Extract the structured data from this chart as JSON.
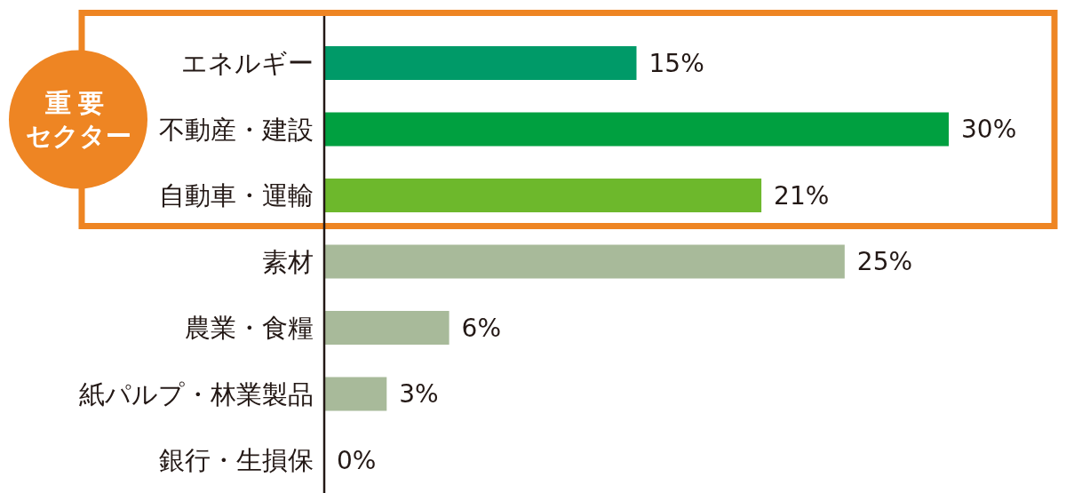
{
  "chart_data": {
    "type": "bar",
    "orientation": "horizontal",
    "categories": [
      "エネルギー",
      "不動産・建設",
      "自動車・運輸",
      "素材",
      "農業・食糧",
      "紙パルプ・林業製品",
      "銀行・生損保"
    ],
    "values": [
      15,
      30,
      21,
      25,
      6,
      3,
      0
    ],
    "colors": [
      "#009a68",
      "#00a040",
      "#6db82c",
      "#a8ba9a",
      "#a8ba9a",
      "#a8ba9a",
      "#a8ba9a"
    ],
    "value_labels": [
      "15%",
      "30%",
      "21%",
      "25%",
      "6%",
      "3%",
      "0%"
    ],
    "tick_labels": "y",
    "annotations": [
      "重要セクター"
    ]
  }
}
